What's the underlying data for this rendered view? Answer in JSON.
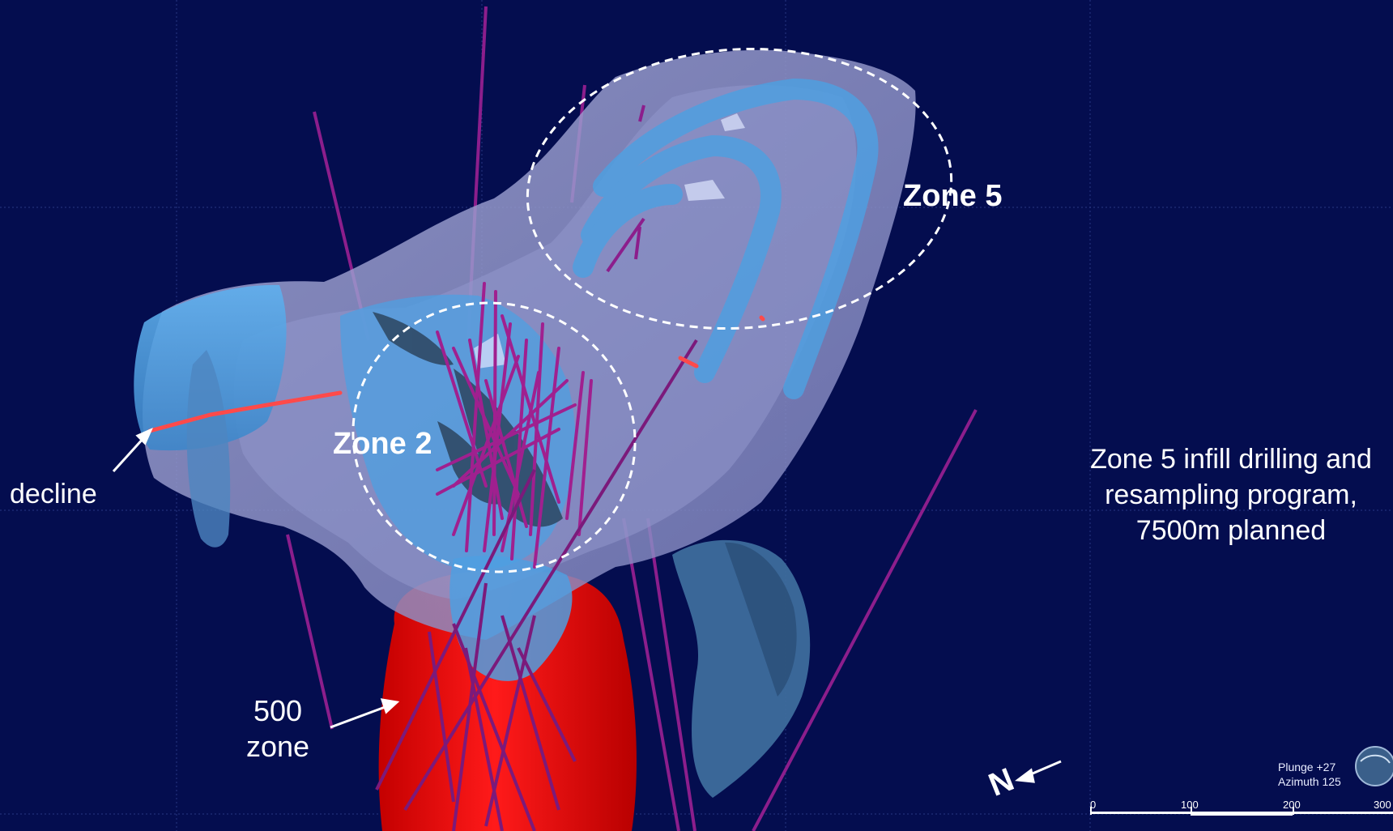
{
  "labels": {
    "zone5": "Zone 5",
    "zone2": "Zone 2",
    "decline": "decline",
    "zone500_line1": "500",
    "zone500_line2": "zone",
    "note_line1": "Zone 5 infill drilling and",
    "note_line2": "resampling program,",
    "note_line3": "7500m planned",
    "north_letter": "N"
  },
  "view": {
    "plunge": "Plunge +27",
    "azimuth": "Azimuth 125"
  },
  "scale_bar": {
    "ticks": [
      "0",
      "100",
      "200",
      "300"
    ]
  },
  "colors": {
    "background": "#040d4f",
    "shell": "#8e93c9",
    "orebody": "#4f9fe0",
    "zone500": "#e41010",
    "drillholes": "#8c1e8c",
    "decline": "#ff4a4a"
  }
}
